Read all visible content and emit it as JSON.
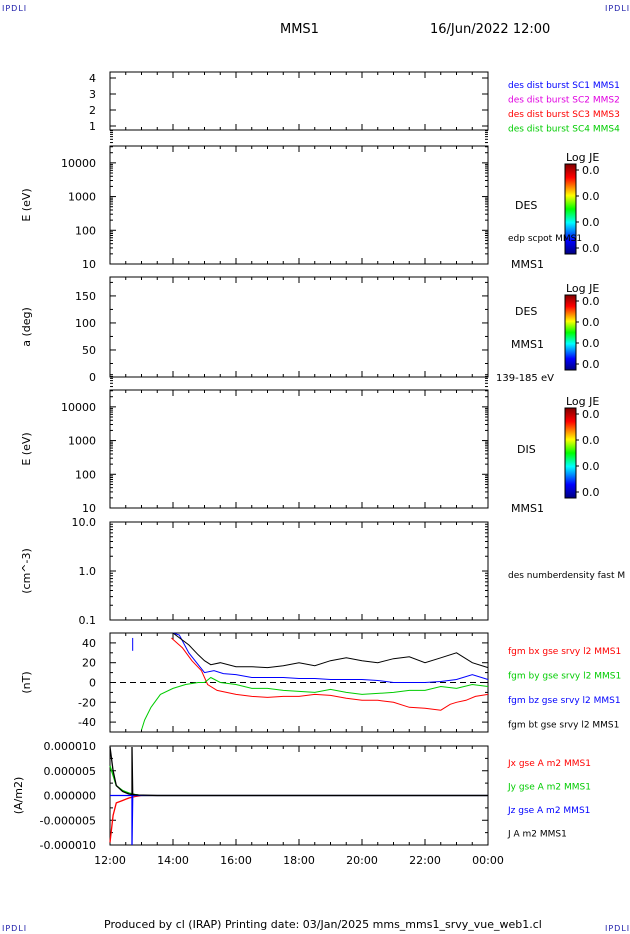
{
  "corner_label": "IPDLI",
  "header": {
    "spacecraft": "MMS1",
    "datetime": "16/Jun/2022 12:00"
  },
  "footer": "Produced by cl (IRAP)   Printing date: 03/Jan/2025   mms_mms1_srvy_vue_web1.cl",
  "time_axis": {
    "ticks": [
      "12:00",
      "14:00",
      "16:00",
      "18:00",
      "20:00",
      "22:00",
      "00:00"
    ],
    "range_hours": [
      12,
      24
    ]
  },
  "colors": {
    "blue": "#0000ff",
    "magenta": "#e000e0",
    "red": "#ff0000",
    "green": "#00cc00",
    "black": "#000000"
  },
  "colorbar": {
    "title": "Log JE",
    "ticks": [
      "0.0",
      "0.0",
      "0.0",
      "0.0"
    ]
  },
  "panels": {
    "sc": {
      "yticks": [
        "4",
        "3",
        "2",
        "1"
      ],
      "labels": [
        "des dist burst SC1 MMS1",
        "des dist burst SC2 MMS2",
        "des dist burst SC3 MMS3",
        "des dist burst SC4 MMS4"
      ]
    },
    "des_e": {
      "ylabel": "E (eV)",
      "yticks": [
        "10000",
        "1000",
        "100",
        "10"
      ],
      "species": "DES",
      "overlay": "edp scpot MMS1",
      "sc": "MMS1"
    },
    "des_pa": {
      "ylabel": "a (deg)",
      "yticks": [
        "150",
        "100",
        "50",
        "0"
      ],
      "species": "DES",
      "sc": "MMS1",
      "energy": "139-185 eV"
    },
    "dis_e": {
      "ylabel": "E (eV)",
      "yticks": [
        "10000",
        "1000",
        "100",
        "10"
      ],
      "species": "DIS",
      "sc": "MMS1"
    },
    "density": {
      "ylabel": "(cm^-3)",
      "yticks": [
        "10.0",
        "1.0",
        "0.1"
      ],
      "label": "des numberdensity fast M"
    },
    "fgm": {
      "ylabel": "(nT)",
      "yticks": [
        "40",
        "20",
        "0",
        "-20",
        "-40"
      ],
      "labels": [
        "fgm bx gse srvy l2 MMS1",
        "fgm by gse srvy l2 MMS1",
        "fgm bz gse srvy l2 MMS1",
        "fgm bt gse srvy l2 MMS1"
      ]
    },
    "current": {
      "ylabel": "(A/m2)",
      "yticks": [
        "0.000010",
        "0.000005",
        "0.000000",
        "-0.000005",
        "-0.000010"
      ],
      "labels": [
        "Jx gse A m2 MMS1",
        "Jy gse A m2 MMS1",
        "Jz gse A m2 MMS1",
        "J A m2 MMS1"
      ]
    }
  },
  "chart_data": [
    {
      "type": "line",
      "panel": "fgm",
      "ylabel": "(nT)",
      "ylim": [
        -50,
        50
      ],
      "xlim": [
        12,
        24
      ],
      "series": [
        {
          "name": "fgm bx gse srvy l2 MMS1",
          "color": "#ff0000",
          "x": [
            13.95,
            14.3,
            14.6,
            14.9,
            15.0,
            15.1,
            15.4,
            16.0,
            16.5,
            17.0,
            17.5,
            18.0,
            18.5,
            19.0,
            19.5,
            20.0,
            20.5,
            21.0,
            21.5,
            22.0,
            22.5,
            22.8,
            23.0,
            23.3,
            23.6,
            24.0
          ],
          "y": [
            45,
            35,
            22,
            12,
            5,
            -2,
            -8,
            -12,
            -14,
            -15,
            -14,
            -14,
            -12,
            -13,
            -16,
            -18,
            -18,
            -20,
            -25,
            -26,
            -28,
            -22,
            -20,
            -18,
            -14,
            -12
          ]
        },
        {
          "name": "fgm by gse srvy l2 MMS1",
          "color": "#00cc00",
          "x": [
            13.0,
            13.1,
            13.3,
            13.6,
            14.0,
            14.4,
            14.8,
            15.0,
            15.2,
            15.5,
            16.0,
            16.5,
            17.0,
            17.5,
            18.0,
            18.5,
            19.0,
            19.5,
            20.0,
            20.5,
            21.0,
            21.5,
            22.0,
            22.5,
            23.0,
            23.5,
            24.0
          ],
          "y": [
            -48,
            -38,
            -25,
            -12,
            -6,
            -2,
            0,
            0,
            5,
            0,
            -2,
            -6,
            -6,
            -8,
            -9,
            -10,
            -7,
            -10,
            -12,
            -11,
            -10,
            -8,
            -8,
            -4,
            -6,
            -2,
            -4
          ]
        },
        {
          "name": "fgm bz gse srvy l2 MMS1",
          "color": "#0000ff",
          "x": [
            14.0,
            14.2,
            14.5,
            14.8,
            15.0,
            15.3,
            15.6,
            16.0,
            16.5,
            17.0,
            17.5,
            18.0,
            18.5,
            19.0,
            19.5,
            20.0,
            20.5,
            21.0,
            21.5,
            22.0,
            22.5,
            23.0,
            23.5,
            24.0
          ],
          "y": [
            50,
            48,
            30,
            18,
            10,
            12,
            9,
            8,
            5,
            5,
            5,
            4,
            4,
            3,
            3,
            3,
            2,
            0,
            0,
            0,
            1,
            3,
            8,
            3
          ]
        },
        {
          "name": "fgm bt gse srvy l2 MMS1",
          "color": "#000000",
          "x": [
            14.0,
            14.5,
            14.8,
            15.0,
            15.2,
            15.5,
            16.0,
            16.5,
            17.0,
            17.5,
            18.0,
            18.5,
            19.0,
            19.5,
            20.0,
            20.5,
            21.0,
            21.5,
            22.0,
            22.5,
            23.0,
            23.5,
            24.0
          ],
          "y": [
            50,
            38,
            28,
            22,
            18,
            20,
            16,
            16,
            15,
            17,
            20,
            17,
            22,
            25,
            22,
            20,
            24,
            26,
            20,
            25,
            30,
            20,
            15
          ]
        }
      ]
    },
    {
      "type": "line",
      "panel": "current",
      "ylabel": "(A/m2)",
      "ylim": [
        -1e-05,
        1e-05
      ],
      "xlim": [
        12,
        24
      ],
      "series": [
        {
          "name": "Jx gse A m2 MMS1",
          "color": "#ff0000",
          "x": [
            12.0,
            12.1,
            12.2,
            12.4,
            12.6,
            12.8,
            13.0,
            24.0
          ],
          "y": [
            -9.5e-06,
            -4e-06,
            -1.5e-06,
            -1e-06,
            -5e-07,
            -2e-07,
            0.0,
            0.0
          ]
        },
        {
          "name": "Jy gse A m2 MMS1",
          "color": "#00cc00",
          "x": [
            12.0,
            12.2,
            12.4,
            12.6,
            12.8,
            13.0,
            24.0
          ],
          "y": [
            6e-06,
            2e-06,
            1e-06,
            5e-07,
            2e-07,
            0.0,
            0.0
          ]
        },
        {
          "name": "Jz gse A m2 MMS1",
          "color": "#0000ff",
          "x": [
            12.0,
            12.7,
            12.7,
            12.72,
            13.0,
            24.0
          ],
          "y": [
            0.0,
            0.0,
            -1e-05,
            0.0,
            0.0,
            0.0
          ]
        },
        {
          "name": "J A m2 MMS1",
          "color": "#000000",
          "x": [
            12.0,
            12.1,
            12.2,
            12.4,
            12.6,
            12.7,
            12.7,
            12.72,
            12.9,
            13.5,
            24.0
          ],
          "y": [
            9.8e-06,
            5e-06,
            2e-06,
            8e-07,
            3e-07,
            2e-07,
            9.8e-06,
            2e-07,
            1e-07,
            0.0,
            0.0
          ]
        }
      ]
    }
  ]
}
